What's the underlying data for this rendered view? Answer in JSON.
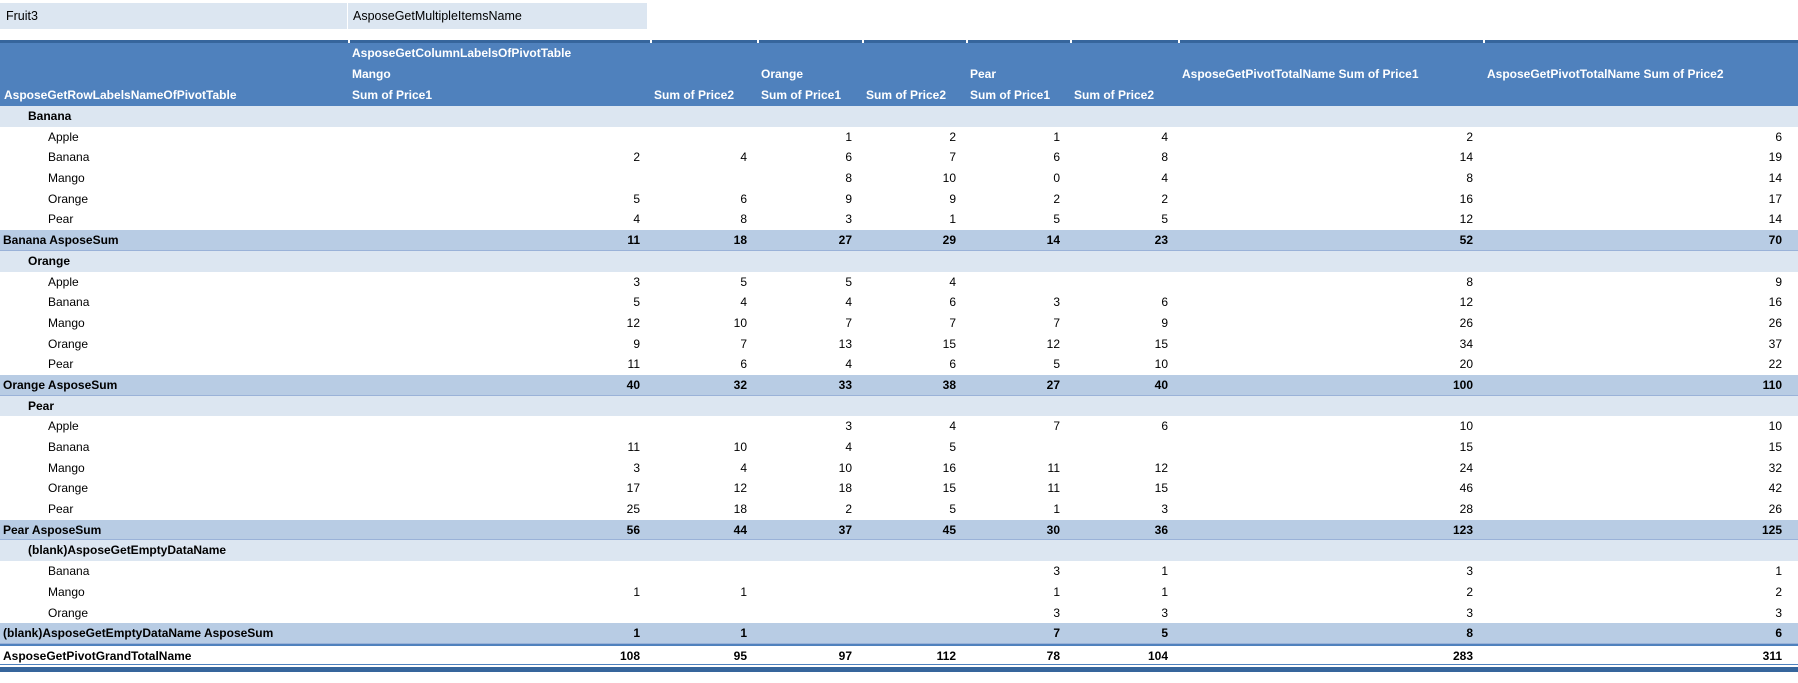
{
  "filter": {
    "field": "Fruit3",
    "value": "AsposeGetMultipleItemsName"
  },
  "header": {
    "row_labels_title": "AsposeGetRowLabelsNameOfPivotTable",
    "column_labels_title": "AsposeGetColumnLabelsOfPivotTable",
    "group_mango": "Mango",
    "group_orange": "Orange",
    "group_pear": "Pear",
    "sum_price1": "Sum of Price1",
    "sum_price2": "Sum of Price2",
    "total_price1": "AsposeGetPivotTotalName Sum of Price1",
    "total_price2": "AsposeGetPivotTotalName Sum of Price2"
  },
  "colors": {
    "header_bg": "#4F81BD",
    "header_text": "#FFFFFF",
    "top_border": "#36659C",
    "group_band": "#DCE6F1",
    "subtotal_band": "#B8CCE4",
    "filter_bg": "#DCE6F1",
    "text": "#000000"
  },
  "columns": [
    "Mango Sum of Price1",
    "Mango Sum of Price2",
    "Orange Sum of Price1",
    "Orange Sum of Price2",
    "Pear Sum of Price1",
    "Pear Sum of Price2",
    "Total Sum of Price1",
    "Total Sum of Price2"
  ],
  "rows": [
    {
      "type": "group",
      "label": "Banana"
    },
    {
      "type": "item",
      "label": "Apple",
      "values": [
        null,
        null,
        1,
        2,
        1,
        4,
        2,
        6
      ]
    },
    {
      "type": "item",
      "label": "Banana",
      "values": [
        2,
        4,
        6,
        7,
        6,
        8,
        14,
        19
      ]
    },
    {
      "type": "item",
      "label": "Mango",
      "values": [
        null,
        null,
        8,
        10,
        0,
        4,
        8,
        14
      ]
    },
    {
      "type": "item",
      "label": "Orange",
      "values": [
        5,
        6,
        9,
        9,
        2,
        2,
        16,
        17
      ]
    },
    {
      "type": "item",
      "label": "Pear",
      "values": [
        4,
        8,
        3,
        1,
        5,
        5,
        12,
        14
      ]
    },
    {
      "type": "subtotal",
      "label": "Banana AsposeSum",
      "values": [
        11,
        18,
        27,
        29,
        14,
        23,
        52,
        70
      ]
    },
    {
      "type": "group",
      "label": "Orange"
    },
    {
      "type": "item",
      "label": "Apple",
      "values": [
        3,
        5,
        5,
        4,
        null,
        null,
        8,
        9
      ]
    },
    {
      "type": "item",
      "label": "Banana",
      "values": [
        5,
        4,
        4,
        6,
        3,
        6,
        12,
        16
      ]
    },
    {
      "type": "item",
      "label": "Mango",
      "values": [
        12,
        10,
        7,
        7,
        7,
        9,
        26,
        26
      ]
    },
    {
      "type": "item",
      "label": "Orange",
      "values": [
        9,
        7,
        13,
        15,
        12,
        15,
        34,
        37
      ]
    },
    {
      "type": "item",
      "label": "Pear",
      "values": [
        11,
        6,
        4,
        6,
        5,
        10,
        20,
        22
      ]
    },
    {
      "type": "subtotal",
      "label": "Orange AsposeSum",
      "values": [
        40,
        32,
        33,
        38,
        27,
        40,
        100,
        110
      ]
    },
    {
      "type": "group",
      "label": "Pear"
    },
    {
      "type": "item",
      "label": "Apple",
      "values": [
        null,
        null,
        3,
        4,
        7,
        6,
        10,
        10
      ]
    },
    {
      "type": "item",
      "label": "Banana",
      "values": [
        11,
        10,
        4,
        5,
        null,
        null,
        15,
        15
      ]
    },
    {
      "type": "item",
      "label": "Mango",
      "values": [
        3,
        4,
        10,
        16,
        11,
        12,
        24,
        32
      ]
    },
    {
      "type": "item",
      "label": "Orange",
      "values": [
        17,
        12,
        18,
        15,
        11,
        15,
        46,
        42
      ]
    },
    {
      "type": "item",
      "label": "Pear",
      "values": [
        25,
        18,
        2,
        5,
        1,
        3,
        28,
        26
      ]
    },
    {
      "type": "subtotal",
      "label": "Pear AsposeSum",
      "values": [
        56,
        44,
        37,
        45,
        30,
        36,
        123,
        125
      ]
    },
    {
      "type": "group",
      "label": "(blank)AsposeGetEmptyDataName"
    },
    {
      "type": "item",
      "label": "Banana",
      "values": [
        null,
        null,
        null,
        null,
        3,
        1,
        3,
        1
      ]
    },
    {
      "type": "item",
      "label": "Mango",
      "values": [
        1,
        1,
        null,
        null,
        1,
        1,
        2,
        2
      ]
    },
    {
      "type": "item",
      "label": "Orange",
      "values": [
        null,
        null,
        null,
        null,
        3,
        3,
        3,
        3
      ]
    },
    {
      "type": "subtotal",
      "label": "(blank)AsposeGetEmptyDataName AsposeSum",
      "values": [
        1,
        1,
        null,
        null,
        7,
        5,
        8,
        6
      ]
    },
    {
      "type": "grand",
      "label": "AsposeGetPivotGrandTotalName",
      "values": [
        108,
        95,
        97,
        112,
        78,
        104,
        283,
        311
      ]
    }
  ]
}
